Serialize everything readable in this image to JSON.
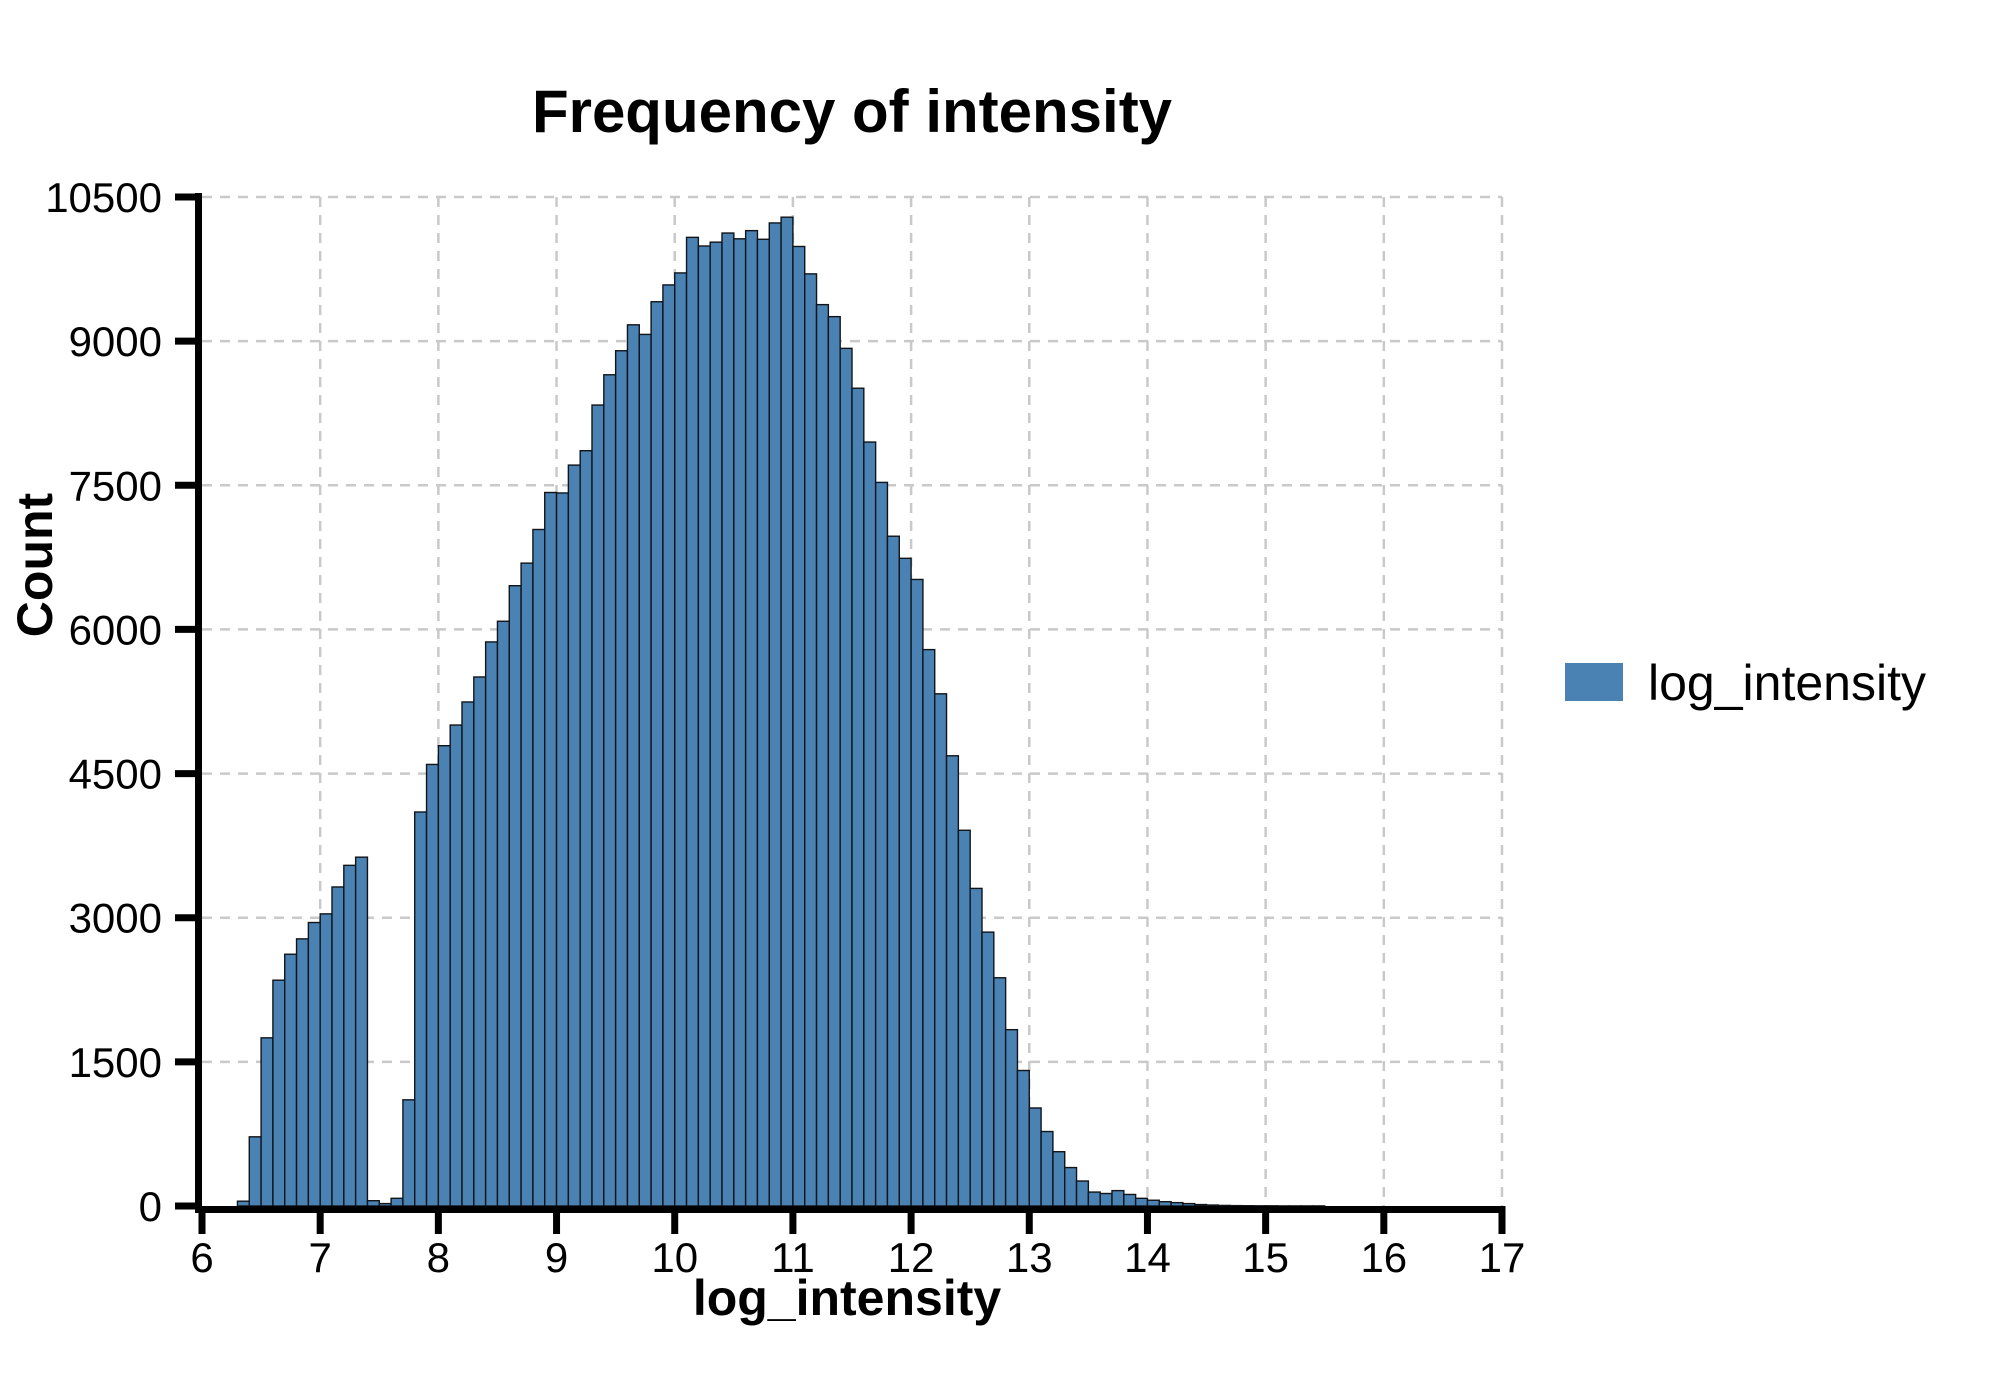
{
  "title": "Frequency of intensity",
  "axes": {
    "x_label": "log_intensity",
    "y_label": "Count",
    "x_ticks": [
      "6",
      "7",
      "8",
      "9",
      "10",
      "11",
      "12",
      "13",
      "14",
      "15",
      "16",
      "17"
    ],
    "x_tick_values": [
      6,
      7,
      8,
      9,
      10,
      11,
      12,
      13,
      14,
      15,
      16,
      17
    ],
    "y_ticks": [
      "0",
      "1500",
      "3000",
      "4500",
      "6000",
      "7500",
      "9000",
      "10500"
    ],
    "y_tick_values": [
      0,
      1500,
      3000,
      4500,
      6000,
      7500,
      9000,
      10500
    ],
    "x_range": [
      6,
      17
    ],
    "y_range": [
      0,
      10500
    ]
  },
  "legend": {
    "label": "log_intensity",
    "position": "right"
  },
  "colors": {
    "bar_fill": "#4a82b4",
    "bar_edge": "#111418",
    "gridline": "#c9c9c9",
    "axis": "#000000",
    "text": "#000000",
    "background": "#ffffff"
  },
  "chart_data": {
    "type": "bar",
    "subtype": "histogram",
    "title": "Frequency of intensity",
    "xlabel": "log_intensity",
    "ylabel": "Count",
    "legend_entries": [
      "log_intensity"
    ],
    "legend_position": "right",
    "grid": "dashed-both-axes",
    "xlim": [
      6,
      17
    ],
    "ylim": [
      0,
      10500
    ],
    "bin_width": 0.1,
    "bin_start": 6.3,
    "counts": [
      50,
      720,
      1750,
      2350,
      2620,
      2780,
      2950,
      3040,
      3320,
      3545,
      3630,
      55,
      25,
      80,
      1105,
      4100,
      4595,
      4790,
      5005,
      5245,
      5505,
      5870,
      6085,
      6455,
      6690,
      7040,
      7425,
      7420,
      7710,
      7860,
      8335,
      8650,
      8900,
      9170,
      9070,
      9410,
      9585,
      9710,
      10080,
      9990,
      10030,
      10125,
      10065,
      10150,
      10060,
      10230,
      10290,
      9985,
      9700,
      9380,
      9255,
      8925,
      8510,
      7950,
      7530,
      6970,
      6740,
      6520,
      5790,
      5330,
      4685,
      3910,
      3305,
      2850,
      2375,
      1835,
      1410,
      1020,
      775,
      565,
      400,
      260,
      145,
      130,
      160,
      120,
      80,
      60,
      45,
      35,
      25,
      15,
      10,
      6,
      4,
      3,
      2,
      2,
      1,
      1,
      1,
      1
    ]
  }
}
